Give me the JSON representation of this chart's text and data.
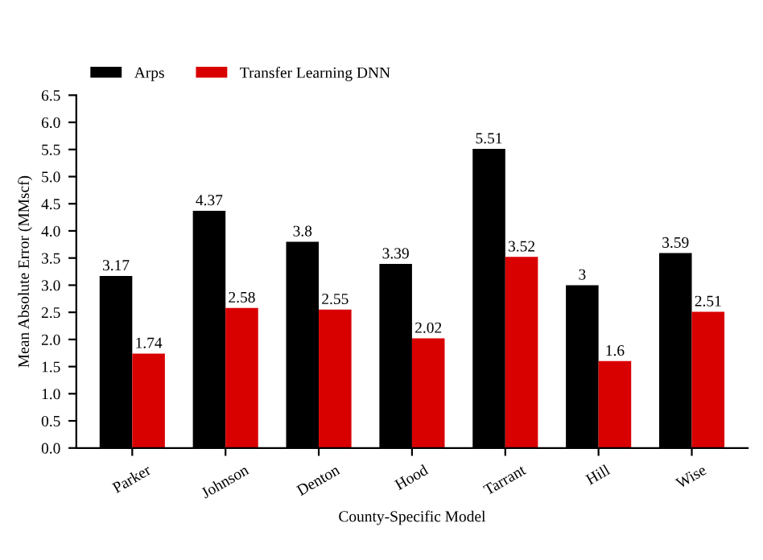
{
  "chart_data": {
    "type": "bar",
    "xlabel": "County-Specific Model",
    "ylabel": "Mean Absolute Error (MMscf)",
    "categories": [
      "Parker",
      "Johnson",
      "Denton",
      "Hood",
      "Tarrant",
      "Hill",
      "Wise"
    ],
    "series": [
      {
        "name": "Arps",
        "color": "#000000",
        "values": [
          3.17,
          4.37,
          3.8,
          3.39,
          5.51,
          3,
          3.59
        ]
      },
      {
        "name": "Transfer Learning DNN",
        "color": "#d90000",
        "values": [
          1.74,
          2.58,
          2.55,
          2.02,
          3.52,
          1.6,
          2.51
        ]
      }
    ],
    "ylim": [
      0,
      6.5
    ],
    "yticks": [
      "0.0",
      "0.5",
      "1.0",
      "1.5",
      "2.0",
      "2.5",
      "3.0",
      "3.5",
      "4.0",
      "4.5",
      "5.0",
      "5.5",
      "6.0",
      "6.5"
    ],
    "data_labels": true,
    "legend": "top left",
    "grid": false
  }
}
